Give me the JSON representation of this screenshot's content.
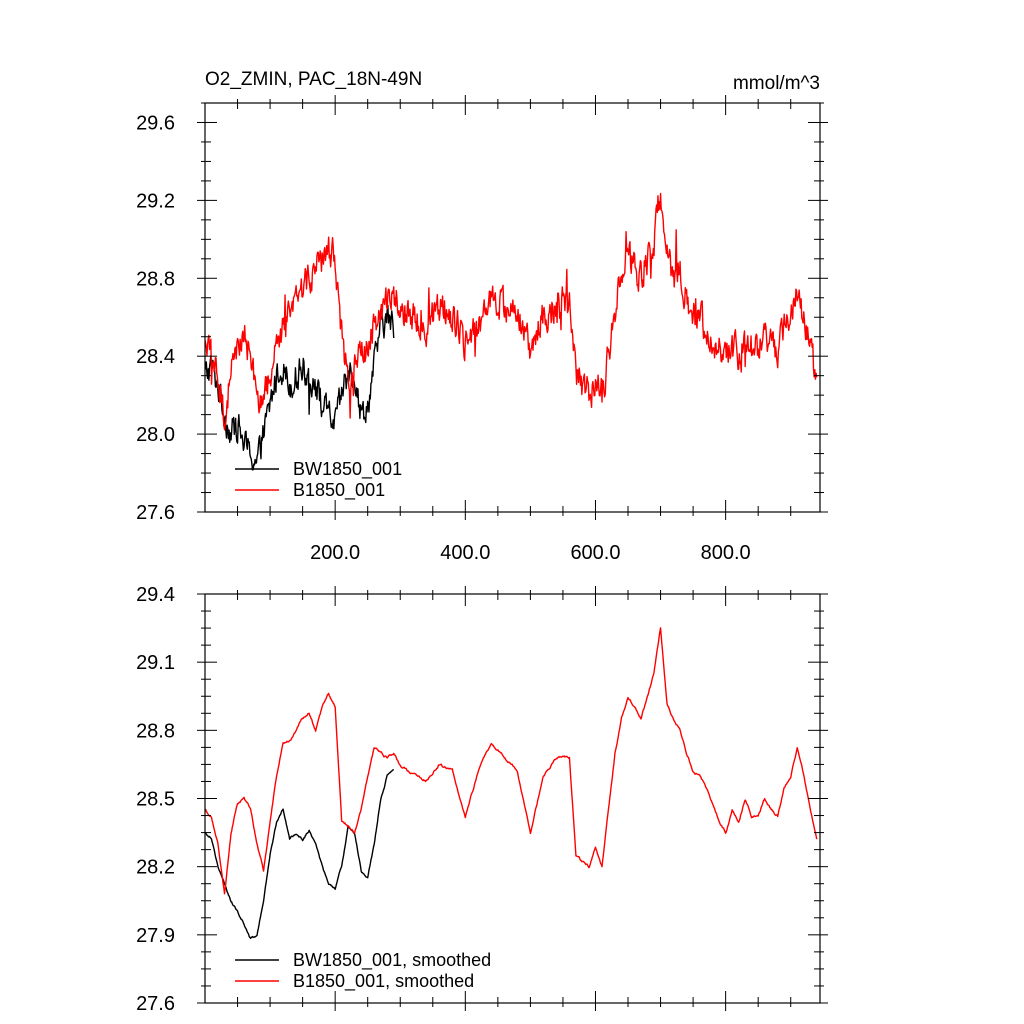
{
  "colors": {
    "BW1850_001": "#000000",
    "B1850_001": "#ff0000",
    "axes": "#000000",
    "background": "#ffffff"
  },
  "chart_data": [
    {
      "type": "line",
      "title": "O2_ZMIN, PAC_18N-49N",
      "units": "mmol/m^3",
      "xlabel": "",
      "ylabel": "",
      "xlim": [
        0,
        945
      ],
      "ylim": [
        27.6,
        29.7
      ],
      "xticks": [
        200,
        400,
        600,
        800
      ],
      "xtick_labels": [
        "200.0",
        "400.0",
        "600.0",
        "800.0"
      ],
      "yticks": [
        27.6,
        28.0,
        28.4,
        28.8,
        29.2,
        29.6
      ],
      "ytick_labels": [
        "27.6",
        "28.0",
        "28.4",
        "28.8",
        "29.2",
        "29.6"
      ],
      "grid": false,
      "legend_position": "bottom-left",
      "series": [
        {
          "name": "BW1850_001",
          "color": "#000000",
          "noise": 0.12,
          "x": [
            0,
            10,
            20,
            30,
            40,
            50,
            60,
            70,
            80,
            90,
            100,
            110,
            120,
            130,
            140,
            150,
            160,
            170,
            180,
            190,
            200,
            210,
            220,
            230,
            240,
            250,
            260,
            270,
            280,
            290
          ],
          "y": [
            28.3,
            28.35,
            28.25,
            28.1,
            28.0,
            28.05,
            27.95,
            27.9,
            27.85,
            28.0,
            28.15,
            28.3,
            28.35,
            28.25,
            28.3,
            28.35,
            28.3,
            28.25,
            28.15,
            28.1,
            28.05,
            28.2,
            28.35,
            28.3,
            28.1,
            28.15,
            28.35,
            28.55,
            28.6,
            28.55
          ]
        },
        {
          "name": "B1850_001",
          "color": "#ff0000",
          "noise": 0.13,
          "x": [
            0,
            10,
            20,
            30,
            40,
            50,
            60,
            70,
            80,
            90,
            100,
            110,
            120,
            130,
            140,
            150,
            160,
            170,
            180,
            190,
            200,
            210,
            220,
            230,
            240,
            250,
            260,
            270,
            280,
            290,
            300,
            320,
            340,
            360,
            380,
            400,
            420,
            440,
            460,
            480,
            500,
            520,
            540,
            560,
            570,
            580,
            590,
            600,
            610,
            620,
            630,
            640,
            650,
            660,
            670,
            680,
            690,
            700,
            710,
            720,
            730,
            740,
            750,
            760,
            770,
            780,
            790,
            800,
            810,
            820,
            830,
            840,
            850,
            860,
            870,
            880,
            890,
            900,
            910,
            920,
            930,
            940
          ],
          "y": [
            28.45,
            28.4,
            28.3,
            28.1,
            28.3,
            28.45,
            28.5,
            28.4,
            28.2,
            28.15,
            28.3,
            28.45,
            28.55,
            28.6,
            28.7,
            28.75,
            28.8,
            28.85,
            28.9,
            28.95,
            28.9,
            28.5,
            28.3,
            28.35,
            28.4,
            28.45,
            28.55,
            28.65,
            28.7,
            28.7,
            28.65,
            28.6,
            28.55,
            28.65,
            28.6,
            28.45,
            28.55,
            28.7,
            28.65,
            28.6,
            28.45,
            28.6,
            28.65,
            28.65,
            28.3,
            28.25,
            28.2,
            28.25,
            28.2,
            28.4,
            28.65,
            28.8,
            28.9,
            28.85,
            28.8,
            28.9,
            29.0,
            29.25,
            28.95,
            28.8,
            28.85,
            28.7,
            28.6,
            28.6,
            28.55,
            28.5,
            28.45,
            28.4,
            28.45,
            28.4,
            28.5,
            28.45,
            28.4,
            28.5,
            28.45,
            28.4,
            28.55,
            28.6,
            28.7,
            28.6,
            28.45,
            28.3
          ]
        }
      ]
    },
    {
      "type": "line",
      "title": "",
      "xlabel": "",
      "ylabel": "",
      "xlim": [
        0,
        945
      ],
      "ylim": [
        27.6,
        29.4
      ],
      "xticks": [
        200,
        400,
        600,
        800
      ],
      "yticks": [
        27.6,
        27.9,
        28.2,
        28.5,
        28.8,
        29.1,
        29.4
      ],
      "ytick_labels": [
        "27.6",
        "27.9",
        "28.2",
        "28.5",
        "28.8",
        "29.1",
        "29.4"
      ],
      "grid": false,
      "legend_position": "bottom-left",
      "series": [
        {
          "name": "BW1850_001, smoothed",
          "color": "#000000",
          "noise": 0.02,
          "x": [
            0,
            10,
            20,
            30,
            40,
            50,
            60,
            70,
            80,
            90,
            100,
            110,
            120,
            130,
            140,
            150,
            160,
            170,
            180,
            190,
            200,
            210,
            220,
            230,
            240,
            250,
            260,
            270,
            280,
            290
          ],
          "y": [
            28.35,
            28.33,
            28.2,
            28.12,
            28.05,
            28.0,
            27.95,
            27.88,
            27.9,
            28.05,
            28.25,
            28.4,
            28.45,
            28.32,
            28.35,
            28.32,
            28.36,
            28.3,
            28.2,
            28.12,
            28.1,
            28.2,
            28.38,
            28.35,
            28.18,
            28.16,
            28.3,
            28.5,
            28.6,
            28.62
          ]
        },
        {
          "name": "B1850_001, smoothed",
          "color": "#ff0000",
          "noise": 0.02,
          "x": [
            0,
            10,
            20,
            30,
            40,
            50,
            60,
            70,
            80,
            90,
            100,
            110,
            120,
            130,
            140,
            150,
            160,
            170,
            180,
            190,
            200,
            210,
            220,
            230,
            240,
            250,
            260,
            270,
            280,
            290,
            300,
            320,
            340,
            360,
            380,
            400,
            420,
            440,
            460,
            480,
            500,
            520,
            540,
            560,
            570,
            580,
            590,
            600,
            610,
            620,
            630,
            640,
            650,
            660,
            670,
            680,
            690,
            700,
            710,
            720,
            730,
            740,
            750,
            760,
            770,
            780,
            790,
            800,
            810,
            820,
            830,
            840,
            850,
            860,
            870,
            880,
            890,
            900,
            910,
            920,
            930,
            940
          ],
          "y": [
            28.45,
            28.42,
            28.3,
            28.08,
            28.35,
            28.48,
            28.5,
            28.45,
            28.3,
            28.18,
            28.4,
            28.6,
            28.75,
            28.75,
            28.8,
            28.85,
            28.88,
            28.8,
            28.9,
            28.96,
            28.9,
            28.4,
            28.38,
            28.35,
            28.45,
            28.6,
            28.72,
            28.7,
            28.68,
            28.7,
            28.65,
            28.6,
            28.58,
            28.65,
            28.62,
            28.42,
            28.62,
            28.75,
            28.68,
            28.62,
            28.35,
            28.6,
            28.68,
            28.68,
            28.25,
            28.22,
            28.2,
            28.28,
            28.2,
            28.45,
            28.7,
            28.85,
            28.95,
            28.9,
            28.85,
            28.95,
            29.05,
            29.25,
            28.92,
            28.85,
            28.8,
            28.7,
            28.62,
            28.6,
            28.55,
            28.48,
            28.4,
            28.35,
            28.45,
            28.4,
            28.5,
            28.42,
            28.42,
            28.5,
            28.45,
            28.42,
            28.55,
            28.6,
            28.72,
            28.6,
            28.45,
            28.32
          ]
        }
      ]
    }
  ]
}
